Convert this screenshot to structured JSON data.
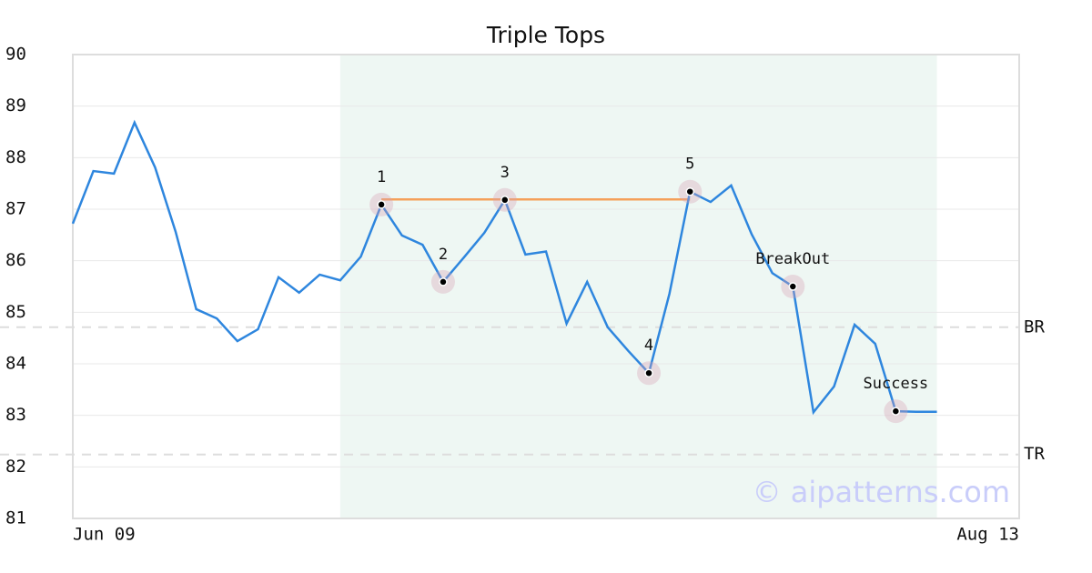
{
  "chart_data": {
    "type": "line",
    "title": "Triple Tops",
    "x": [
      0,
      1,
      2,
      3,
      4,
      5,
      6,
      7,
      8,
      9,
      10,
      11,
      12,
      13,
      14,
      15,
      16,
      17,
      18,
      19,
      20,
      21,
      22,
      23,
      24,
      25,
      26,
      27,
      28,
      29,
      30,
      31,
      32,
      33,
      34,
      35,
      36,
      37,
      38,
      39,
      40,
      41,
      42
    ],
    "series": [
      {
        "color": "#2e86de",
        "values": [
          86.72,
          87.74,
          87.69,
          88.68,
          87.81,
          86.56,
          85.06,
          84.88,
          84.44,
          84.67,
          85.68,
          85.38,
          85.73,
          85.62,
          86.08,
          87.09,
          86.49,
          86.31,
          85.59,
          86.06,
          86.54,
          87.18,
          86.12,
          86.18,
          84.78,
          85.59,
          84.71,
          84.25,
          83.82,
          85.36,
          87.34,
          87.14,
          87.46,
          86.51,
          85.76,
          85.5,
          83.06,
          83.56,
          84.76,
          84.39,
          83.08,
          83.07,
          83.07
        ]
      }
    ],
    "xlim": [
      0,
      46
    ],
    "xticks": [
      {
        "value": 0,
        "label": "Jun 09"
      },
      {
        "value": 46,
        "label": "Aug 13"
      }
    ],
    "ylim": [
      81,
      90
    ],
    "yticks": [
      81,
      82,
      83,
      84,
      85,
      86,
      87,
      88,
      89,
      90
    ],
    "grid": true,
    "highlight_x": [
      13,
      42
    ],
    "highlight_color": "#eef7f3",
    "resistance": {
      "x": [
        15,
        30
      ],
      "y": 87.19,
      "color": "#f5a05a"
    },
    "levels": [
      {
        "label": "BR",
        "value": 84.71
      },
      {
        "label": "TR",
        "value": 82.24
      }
    ],
    "annotations": [
      {
        "text": "1",
        "x": 15,
        "y": 87.09
      },
      {
        "text": "2",
        "x": 18,
        "y": 85.59
      },
      {
        "text": "3",
        "x": 21,
        "y": 87.18
      },
      {
        "text": "4",
        "x": 28,
        "y": 83.82
      },
      {
        "text": "5",
        "x": 30,
        "y": 87.34
      },
      {
        "text": "BreakOut",
        "x": 35,
        "y": 85.5
      },
      {
        "text": "Success",
        "x": 40,
        "y": 83.08
      }
    ],
    "watermark": "© aipatterns.com"
  }
}
